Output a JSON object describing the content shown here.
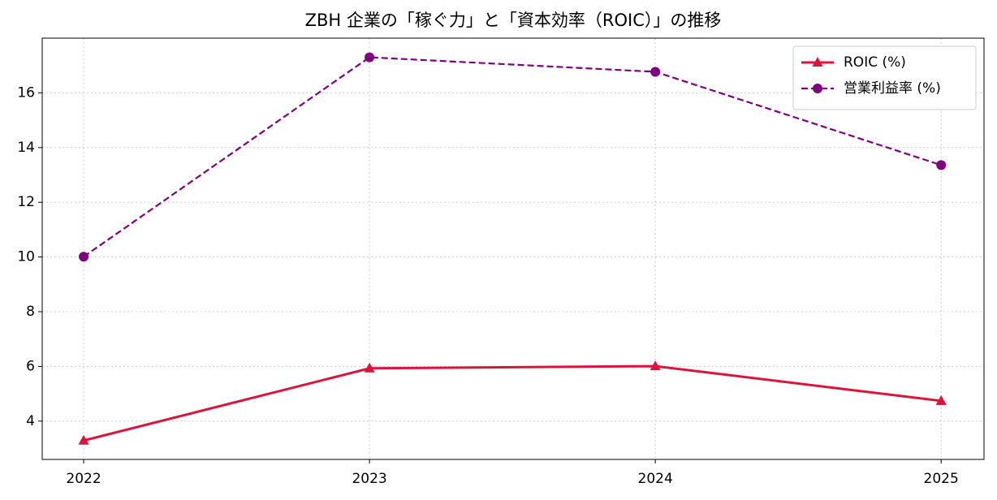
{
  "chart_data": {
    "type": "line",
    "title": "ZBH 企業の「稼ぐ力」と「資本効率（ROIC）」の推移",
    "x": [
      2022,
      2023,
      2024,
      2025
    ],
    "xlim": [
      2021.855,
      2025.15
    ],
    "xticks": [
      2022,
      2023,
      2024,
      2025
    ],
    "ylim": [
      2.6,
      18.0
    ],
    "yticks": [
      4,
      6,
      8,
      10,
      12,
      14,
      16
    ],
    "grid": true,
    "legend": "upper-right",
    "series": [
      {
        "name": "ROIC (%)",
        "color": "#dc143c",
        "marker": "triangle",
        "linestyle": "solid",
        "values": [
          3.29,
          5.93,
          6.01,
          4.74
        ]
      },
      {
        "name": "営業利益率 (%)",
        "color": "#800080",
        "marker": "circle",
        "linestyle": "dashed",
        "values": [
          10.01,
          17.3,
          16.77,
          13.36
        ]
      }
    ]
  }
}
